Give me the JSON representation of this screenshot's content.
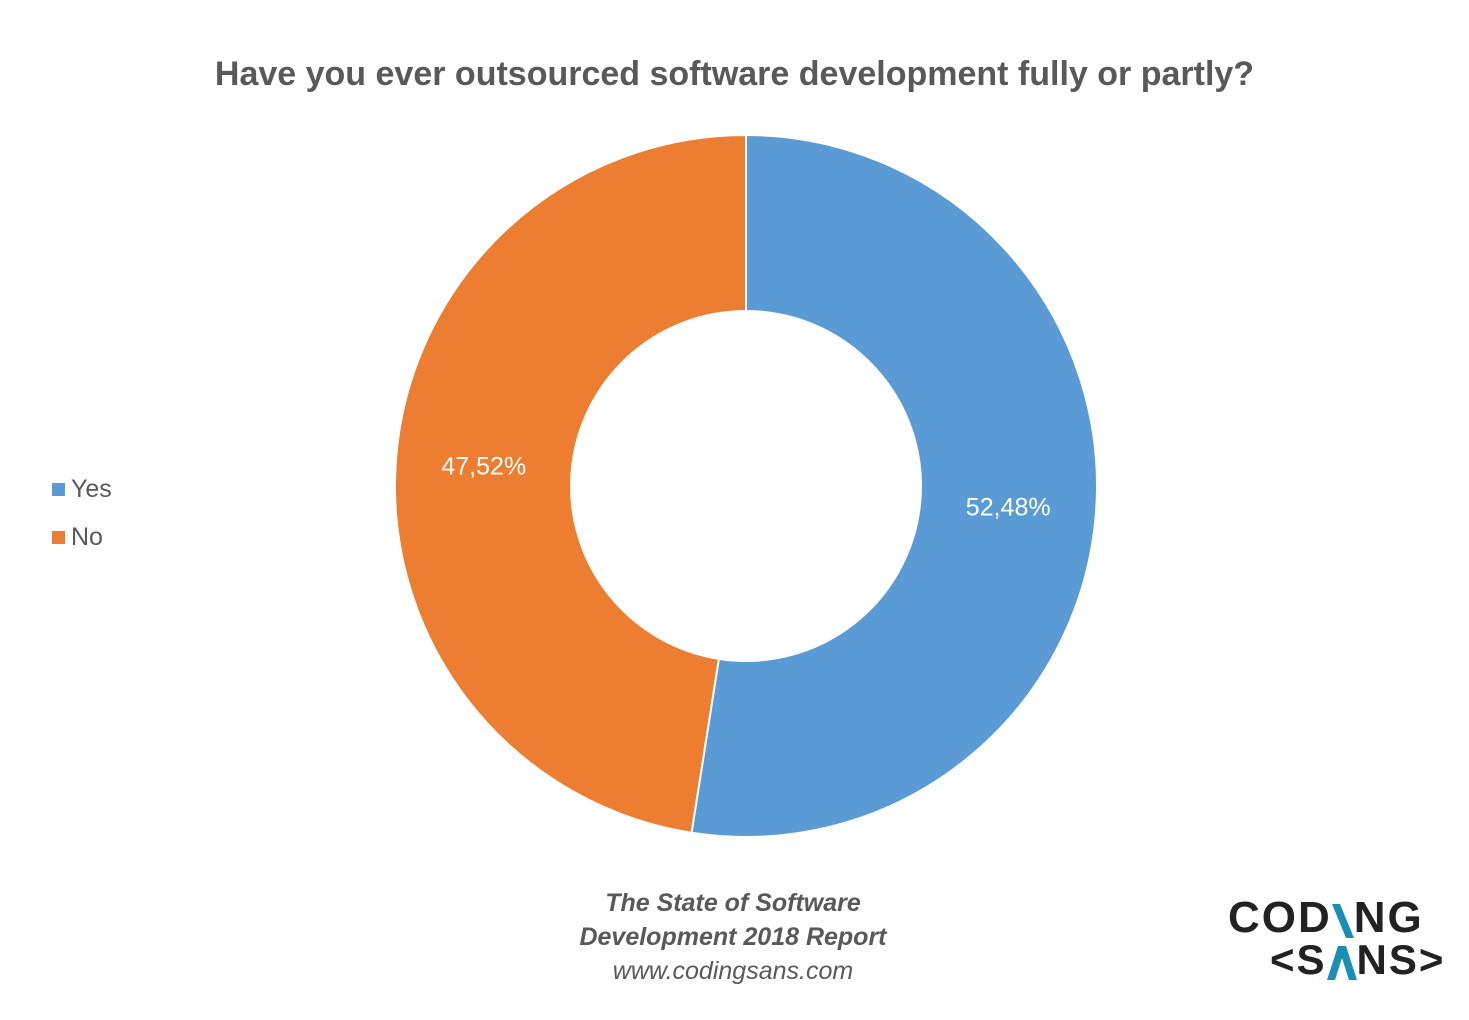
{
  "chart_data": {
    "type": "pie",
    "donut": true,
    "title": "Have you ever outsourced software development fully or partly?",
    "categories": [
      "Yes",
      "No"
    ],
    "values": [
      52.48,
      47.52
    ],
    "labels": [
      "52,48%",
      "47,52%"
    ],
    "colors": [
      "#5B9BD5",
      "#ED7D31"
    ],
    "legend_position": "left",
    "start_angle": "top, clockwise"
  },
  "footer": {
    "line1": "The State of Software",
    "line2": "Development 2018 Report",
    "url": "www.codingsans.com"
  },
  "logo": {
    "text": "CODING <SANS>",
    "accent": "#1A8FB5"
  }
}
